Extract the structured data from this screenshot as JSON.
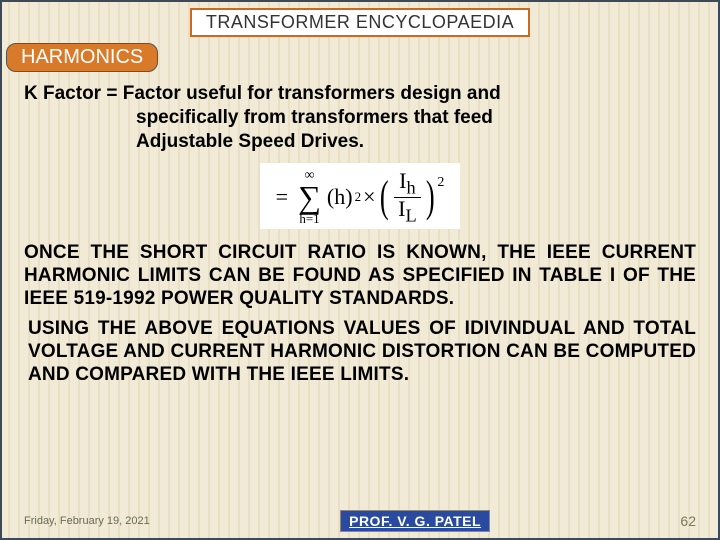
{
  "header": {
    "title": "TRANSFORMER ENCYCLOPAEDIA",
    "section": "HARMONICS"
  },
  "kfactor": {
    "line1": "K Factor = Factor useful for transformers design and",
    "line2": "specifically from transformers that feed",
    "line3": "Adjustable Speed Drives."
  },
  "formula": {
    "eq": "=",
    "sigma_top": "∞",
    "sigma_bottom": "h=1",
    "term_h": "(h)",
    "exp2a": "2",
    "times": "×",
    "frac_num": "I",
    "frac_num_sub": "h",
    "frac_den": "I",
    "frac_den_sub": "L",
    "exp2b": "2"
  },
  "body": {
    "p1": "ONCE THE SHORT CIRCUIT RATIO IS KNOWN, THE IEEE CURRENT HARMONIC LIMITS CAN BE FOUND AS SPECIFIED IN TABLE I OF THE IEEE 519-1992 POWER QUALITY STANDARDS.",
    "p2": "USING THE ABOVE EQUATIONS VALUES OF IDIVINDUAL AND TOTAL VOLTAGE AND CURRENT HARMONIC DISTORTION CAN BE COMPUTED AND COMPARED WITH THE IEEE LIMITS."
  },
  "footer": {
    "date": "Friday, February 19, 2021",
    "prof": "PROF. V. G. PATEL",
    "page": "62"
  },
  "colors": {
    "accent_orange": "#d97a2b",
    "title_border": "#c96a1e",
    "prof_bg": "#2a4aa0",
    "bg_stripe_light": "#f0ead6",
    "bg_stripe_dark": "#e8dfc5"
  }
}
